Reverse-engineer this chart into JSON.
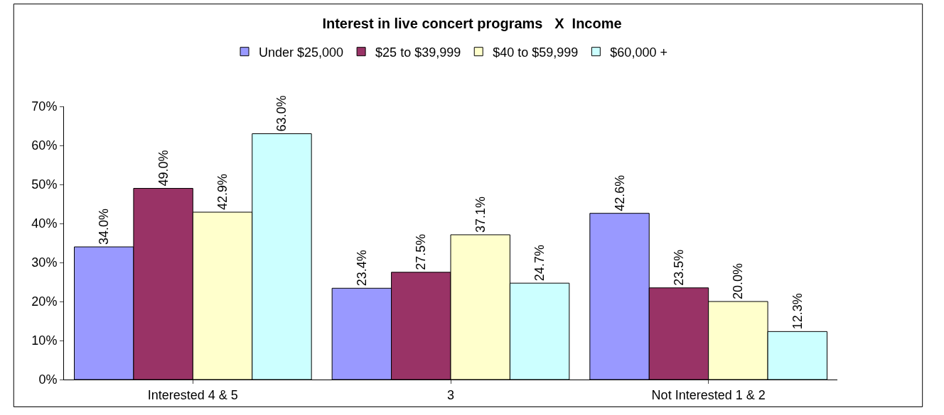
{
  "chart_data": {
    "type": "bar",
    "title": "Interest in live concert programs   X  Income",
    "categories": [
      "Interested 4 & 5",
      "3",
      "Not Interested 1 & 2"
    ],
    "series": [
      {
        "name": "Under $25,000",
        "color": "#9999ff",
        "values": [
          34.0,
          23.4,
          42.6
        ],
        "value_labels": [
          "34.0%",
          "23.4%",
          "42.6%"
        ]
      },
      {
        "name": "$25 to $39,999",
        "color": "#993366",
        "values": [
          49.0,
          27.5,
          23.5
        ],
        "value_labels": [
          "49.0%",
          "27.5%",
          "23.5%"
        ]
      },
      {
        "name": "$40 to $59,999",
        "color": "#ffffcc",
        "values": [
          42.9,
          37.1,
          20.0
        ],
        "value_labels": [
          "42.9%",
          "37.1%",
          "20.0%"
        ]
      },
      {
        "name": "$60,000 +",
        "color": "#ccffff",
        "values": [
          63.0,
          24.7,
          12.3
        ],
        "value_labels": [
          "63.0%",
          "24.7%",
          "12.3%"
        ]
      }
    ],
    "ylim": [
      0,
      70
    ],
    "yticks": [
      {
        "value": 0,
        "label": "0%"
      },
      {
        "value": 10,
        "label": "10%"
      },
      {
        "value": 20,
        "label": "20%"
      },
      {
        "value": 30,
        "label": "30%"
      },
      {
        "value": 40,
        "label": "40%"
      },
      {
        "value": 50,
        "label": "50%"
      },
      {
        "value": 60,
        "label": "60%"
      },
      {
        "value": 70,
        "label": "70%"
      }
    ],
    "grid": false,
    "legend": "top"
  }
}
